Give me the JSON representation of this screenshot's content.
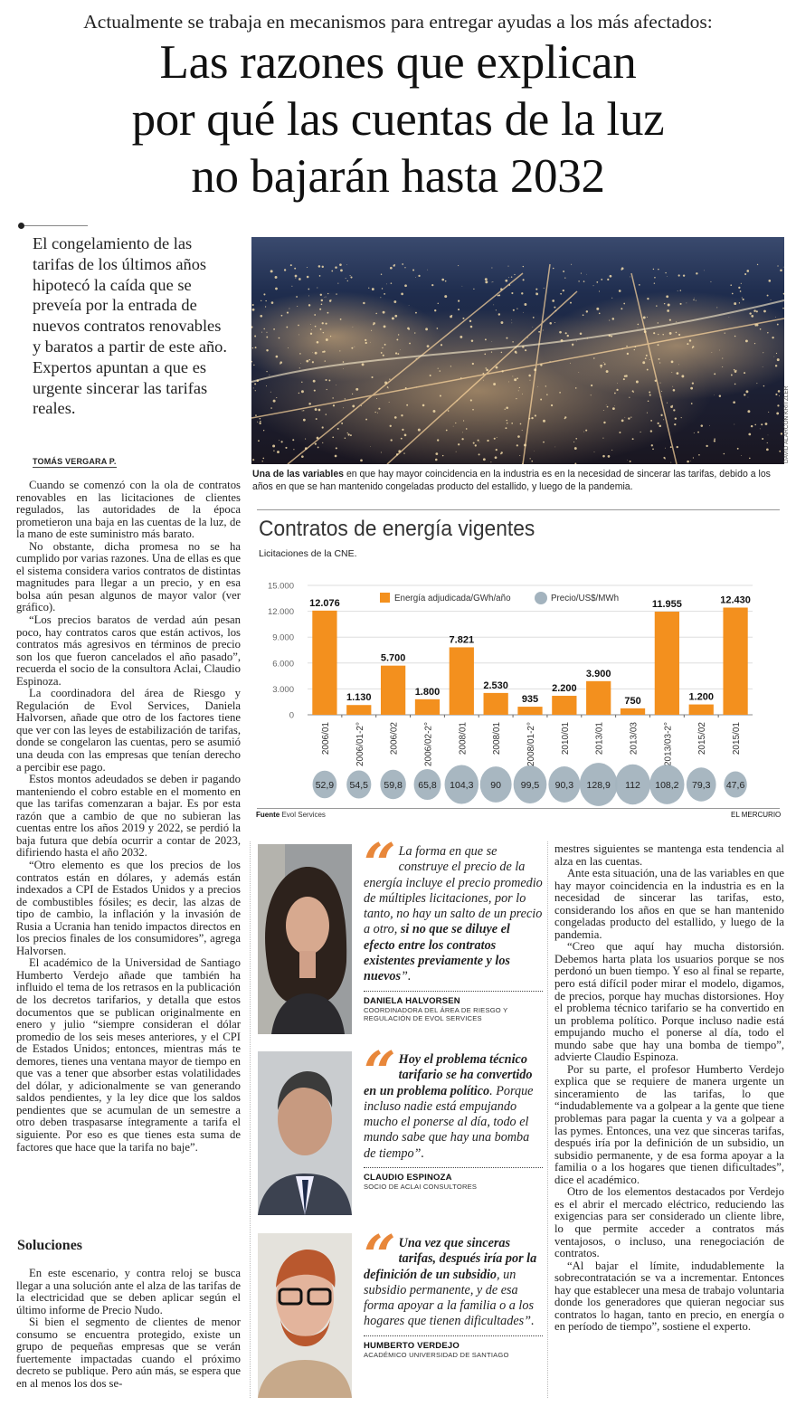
{
  "kicker": "Actualmente se trabaja en mecanismos para entregar ayudas a los más afectados:",
  "title_lines": [
    "Las razones que explican",
    "por qué las cuentas de la luz",
    "no bajarán hasta 2032"
  ],
  "lead": "El congelamiento de las tarifas de los últimos años hipotecó la caída que se preveía por la entrada de nuevos contratos renovables y baratos a partir de este año. Expertos apuntan a que es urgente sincerar las tarifas reales.",
  "byline": "TOMÁS VERGARA P.",
  "photo": {
    "credit": "DAVID ALARCÓN KRITZLER",
    "caption_bold": "Una de las variables",
    "caption_rest": " en que hay mayor coincidencia en la industria es en la necesidad de sincerar las tarifas, debido a los años en que se han mantenido congeladas producto del estallido, y luego de la pandemia."
  },
  "chart": {
    "title": "Contratos de energía vigentes",
    "subtitle": "Licitaciones de la CNE.",
    "source_label": "Fuente",
    "source": " Evol Services",
    "brand": "EL MERCURIO"
  },
  "chart_data": {
    "type": "bar",
    "title": "Contratos de energía vigentes",
    "subtitle": "Licitaciones de la CNE.",
    "categories": [
      "2006/01",
      "2006/01-2°",
      "2006/02",
      "2006/02-2°",
      "2008/01",
      "2008/01",
      "2008/01-2°",
      "2010/01",
      "2013/01",
      "2013/03",
      "2013/03-2°",
      "2015/02",
      "2015/01"
    ],
    "series": [
      {
        "name": "Energía adjudicada/GWh/año",
        "color": "#f3901e",
        "values": [
          12076,
          1130,
          5700,
          1800,
          7821,
          2530,
          935,
          2200,
          3900,
          750,
          11955,
          1200,
          12430
        ],
        "labels": [
          "12.076",
          "1.130",
          "5.700",
          "1.800",
          "7.821",
          "2.530",
          "935",
          "2.200",
          "3.900",
          "750",
          "11.955",
          "1.200",
          "12.430"
        ]
      },
      {
        "name": "Precio/US$/MWh",
        "color": "#a3b3be",
        "values": [
          52.9,
          54.5,
          59.8,
          65.8,
          104.3,
          90,
          99.5,
          90.3,
          128.9,
          112,
          108.2,
          79.3,
          47.6
        ],
        "labels": [
          "52,9",
          "54,5",
          "59,8",
          "65,8",
          "104,3",
          "90",
          "99,5",
          "90,3",
          "128,9",
          "112",
          "108,2",
          "79,3",
          "47,6"
        ]
      }
    ],
    "ylim": [
      0,
      15000
    ],
    "yticks": [
      0,
      3000,
      6000,
      9000,
      12000,
      15000
    ],
    "ytick_labels": [
      "0",
      "3.000",
      "6.000",
      "9.000",
      "12.000",
      "15.000"
    ],
    "grid": true,
    "legend": "top-center"
  },
  "left_col": [
    "Cuando se comenzó con la ola de contratos renovables en las licitaciones de clientes regulados, las autoridades de la época prometieron una baja en las cuentas de la luz, de la mano de este suministro más barato.",
    "No obstante, dicha promesa no se ha cumplido por varias razones. Una de ellas es que el sistema considera varios contratos de distintas magnitudes para llegar a un precio, y en esa bolsa aún pesan algunos de mayor valor (ver gráfico).",
    "“Los precios baratos de verdad aún pesan poco, hay contratos caros que están activos, los contratos más agresivos en términos de precio son los que fueron cancelados el año pasado”, recuerda el socio de la consultora Aclai, Claudio Espinoza.",
    "La coordinadora del área de Riesgo y Regulación de Evol Services, Daniela Halvorsen, añade que otro de los factores tiene que ver con las leyes de estabilización de tarifas, donde se congelaron las cuentas, pero se asumió una deuda con las empresas que tenían derecho a percibir ese pago.",
    "Estos montos adeudados se deben ir pagando manteniendo el cobro estable en el momento en que las tarifas comenzaran a bajar. Es por esta razón que a cambio de que no subieran las cuentas entre los años 2019 y 2022, se perdió la baja futura que debía ocurrir a contar de 2023, difiriendo hasta el año 2032.",
    "“Otro elemento es que los precios de los contratos están en dólares, y además están indexados a CPI de Estados Unidos y a precios de combustibles fósiles; es decir, las alzas de tipo de cambio, la inflación y la invasión de Rusia a Ucrania han tenido impactos directos en los precios finales de los consumidores”, agrega Halvorsen.",
    "El académico de la Universidad de Santiago Humberto Verdejo añade que también ha influido el tema de los retrasos en la publicación de los decretos tarifarios, y detalla que estos documentos que se publican originalmente en enero y julio “siempre consideran el dólar promedio de los seis meses anteriores, y el CPI de Estados Unidos; entonces, mientras más te demores, tienes una ventana mayor de tiempo en que vas a tener que absorber estas volatilidades del dólar, y adicionalmente se van generando saldos pendientes, y la ley dice que los saldos pendientes que se acumulan de un semestre a otro deben traspasarse íntegramente a tarifa el siguiente. Por eso es que tienes esta suma de factores que hace que la tarifa no baje”."
  ],
  "solutions": {
    "heading": "Soluciones",
    "paragraphs": [
      "En este escenario, y contra reloj se busca llegar a una solución ante el alza de las tarifas de la electricidad que se deben aplicar según el último informe de Precio Nudo.",
      "Si bien el segmento de clientes de menor consumo se encuentra protegido, existe un grupo de pequeñas empresas que se verán fuertemente impactadas cuando el próximo decreto se publique. Pero aún más, se espera que en al menos los dos se-"
    ]
  },
  "right_col": [
    "mestres siguientes se mantenga esta tendencia al alza en las cuentas.",
    "Ante esta situación, una de las variables en que hay mayor coincidencia en la industria es en la necesidad de sincerar las tarifas, esto, considerando los años en que se han mantenido congeladas producto del estallido, y luego de la pandemia.",
    "“Creo que aquí hay mucha distorsión. Debemos harta plata los usuarios porque se nos perdonó un buen tiempo. Y eso al final se reparte, pero está difícil poder mirar el modelo, digamos, de precios, porque hay muchas distorsiones. Hoy el problema técnico tarifario se ha convertido en un problema político. Porque incluso nadie está empujando mucho el ponerse al día, todo el mundo sabe que hay una bomba de tiempo”, advierte Claudio Espinoza.",
    "Por su parte, el profesor Humberto Verdejo explica que se requiere de manera urgente un sinceramiento de las tarifas, lo que “indudablemente va a golpear a la gente que tiene problemas para pagar la cuenta y va a golpear a las pymes. Entonces, una vez que sinceras tarifas, después iría por la definición de un subsidio, un subsidio permanente, y de esa forma apoyar a la familia o a los hogares que tienen dificultades”, dice el académico.",
    "Otro de los elementos destacados por Verdejo es el abrir el mercado eléctrico, reduciendo las exigencias para ser considerado un cliente libre, lo que permite acceder a contratos más ventajosos, o incluso, una renegociación de contratos.",
    "“Al bajar el límite, indudablemente la sobrecontratación se va a incrementar. Entonces hay que establecer una mesa de trabajo voluntaria donde los generadores que quieran negociar sus contratos lo hagan, tanto en precio, en energía o en período de tiempo”, sostiene el experto."
  ],
  "quotes": [
    {
      "pre": "La forma en que se construye el precio de la energía incluye el precio promedio de múltiples licitaciones, por lo tanto, no hay un salto de un precio a otro, ",
      "bold": "si no que se diluye el efecto entre los contratos existentes previamente y los nuevos",
      "post": "”.",
      "name": "DANIELA HALVORSEN",
      "role": "COORDINADORA DEL ÁREA DE RIESGO Y REGULACIÓN DE EVOL SERVICES"
    },
    {
      "pre": "",
      "bold": "Hoy el problema técnico tarifario se ha convertido en un problema político",
      "post": ". Porque incluso nadie está empujando mucho el ponerse al día, todo el mundo sabe que hay una bomba de tiempo”.",
      "name": "CLAUDIO ESPINOZA",
      "role": "SOCIO DE ACLAI CONSULTORES"
    },
    {
      "pre": "",
      "bold": "Una vez que sinceras tarifas, después iría por la definición de un subsidio",
      "post": ", un subsidio permanente, y de esa forma apoyar a la familia o a los hogares que tienen dificultades”.",
      "name": "HUMBERTO VERDEJO",
      "role": "ACADÉMICO UNIVERSIDAD DE SANTIAGO"
    }
  ],
  "colors": {
    "accent": "#f3901e",
    "bubble": "#a3b3be",
    "quote_mark": "#e8873a"
  }
}
